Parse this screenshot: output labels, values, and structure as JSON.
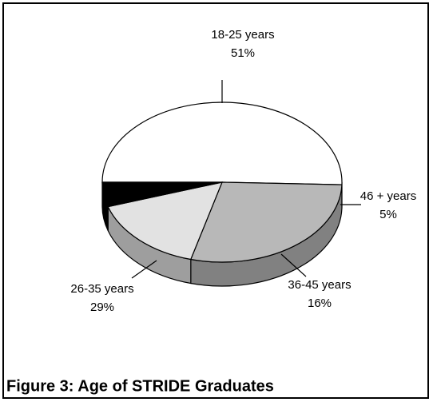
{
  "chart_data": {
    "type": "pie",
    "title": "Figure 3: Age of STRIDE Graduates",
    "categories": [
      "18-25 years",
      "26-35 years",
      "36-45 years",
      "46 + years"
    ],
    "values": [
      51,
      29,
      16,
      5
    ],
    "value_labels": [
      "51%",
      "29%",
      "16%",
      "5%"
    ],
    "colors": [
      "#ffffff",
      "#b8b8b8",
      "#e2e2e2",
      "#000000"
    ]
  }
}
